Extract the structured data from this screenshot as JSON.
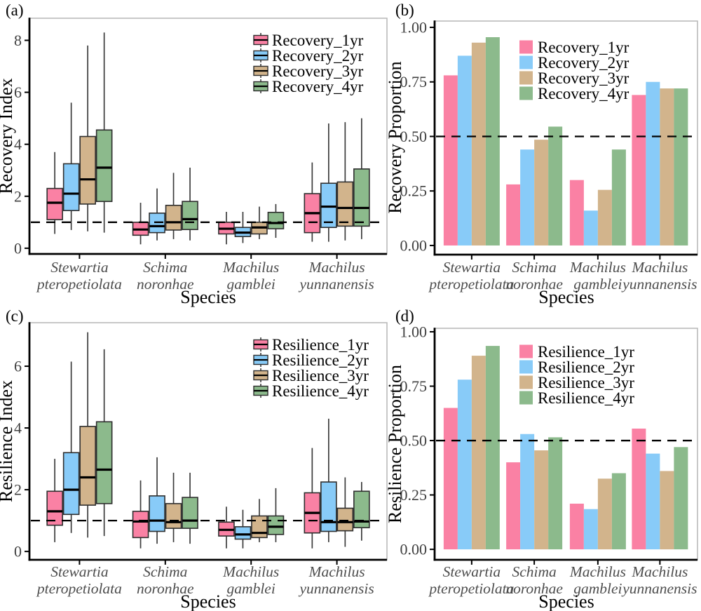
{
  "figure": {
    "x_axis_title": "Species",
    "species": [
      [
        "Stewartia",
        "pteropetiolata"
      ],
      [
        "Schima",
        "noronhae"
      ],
      [
        "Machilus",
        "gamblei"
      ],
      [
        "Machilus",
        "yunnanensis"
      ]
    ],
    "colors": {
      "series_pink": "#FA81A4",
      "series_blue": "#88CBF8",
      "series_tan": "#D2B48C",
      "series_green": "#8CBA8C",
      "box_stroke": "#2e2e2e",
      "median_line": "#000000",
      "whisker": "#3c3c3c",
      "axis": "#000000",
      "panel_border": "#b5b5b5",
      "tick_label": "#404040",
      "species_label": "#4d4d4d",
      "reference_line": "#000000"
    }
  },
  "chart_data": [
    {
      "panel_label": "(a)",
      "type": "box",
      "title": "",
      "xlabel": "Species",
      "ylabel": "Recovery Index",
      "categories": [
        "Stewartia pteropetiolata",
        "Schima noronhae",
        "Machilus gamblei",
        "Machilus yunnanensis"
      ],
      "yticks": [
        0,
        2,
        4,
        6,
        8
      ],
      "ytick_labels": [
        "0",
        "2",
        "4",
        "6",
        "8"
      ],
      "ylim": [
        -0.22,
        8.85
      ],
      "ref_line": 1.0,
      "grid": false,
      "legend_position": "top-right-inside",
      "legend_style": "boxplot-key",
      "series": [
        {
          "name": "Recovery_1yr",
          "color_key": "series_pink",
          "boxes": [
            [
              0.55,
              1.1,
              1.75,
              2.3,
              3.7
            ],
            [
              0.15,
              0.5,
              0.72,
              1.0,
              1.75
            ],
            [
              0.15,
              0.55,
              0.75,
              1.0,
              1.4
            ],
            [
              0.25,
              0.6,
              1.35,
              2.1,
              3.3
            ]
          ]
        },
        {
          "name": "Recovery_2yr",
          "color_key": "series_blue",
          "boxes": [
            [
              0.7,
              1.45,
              2.1,
              3.25,
              5.6
            ],
            [
              0.3,
              0.6,
              0.85,
              1.35,
              2.3
            ],
            [
              0.2,
              0.45,
              0.6,
              0.8,
              1.4
            ],
            [
              0.25,
              0.8,
              1.6,
              2.5,
              4.8
            ]
          ]
        },
        {
          "name": "Recovery_3yr",
          "color_key": "series_tan",
          "boxes": [
            [
              0.65,
              1.7,
              2.65,
              4.3,
              7.8
            ],
            [
              0.35,
              0.7,
              1.0,
              1.65,
              2.9
            ],
            [
              0.35,
              0.55,
              0.8,
              1.0,
              1.6
            ],
            [
              0.3,
              0.85,
              1.55,
              2.55,
              4.85
            ]
          ]
        },
        {
          "name": "Recovery_4yr",
          "color_key": "series_green",
          "boxes": [
            [
              0.6,
              1.8,
              3.1,
              4.55,
              8.3
            ],
            [
              0.3,
              0.72,
              1.12,
              1.8,
              3.1
            ],
            [
              0.4,
              0.75,
              0.97,
              1.38,
              1.7
            ],
            [
              0.35,
              0.85,
              1.55,
              3.05,
              5.0
            ]
          ]
        }
      ]
    },
    {
      "panel_label": "(b)",
      "type": "bar",
      "title": "",
      "xlabel": "Species",
      "ylabel": "Recovery Proportion",
      "categories": [
        "Stewartia pteropetiolata",
        "Schima noronhae",
        "Machilus gamblei",
        "Machilus yunnanensis"
      ],
      "yticks": [
        0,
        0.25,
        0.5,
        0.75,
        1.0
      ],
      "ytick_labels": [
        "0.00",
        "0.25",
        "0.50",
        "0.75",
        "1.00"
      ],
      "ylim": [
        -0.042,
        1.029
      ],
      "ref_line": 0.5,
      "grid": false,
      "legend_position": "top-center-inside",
      "legend_style": "square-key",
      "series": [
        {
          "name": "Recovery_1yr",
          "color_key": "series_pink",
          "values": [
            0.78,
            0.28,
            0.3,
            0.69
          ]
        },
        {
          "name": "Recovery_2yr",
          "color_key": "series_blue",
          "values": [
            0.87,
            0.44,
            0.16,
            0.75
          ]
        },
        {
          "name": "Recovery_3yr",
          "color_key": "series_tan",
          "values": [
            0.93,
            0.485,
            0.255,
            0.72
          ]
        },
        {
          "name": "Recovery_4yr",
          "color_key": "series_green",
          "values": [
            0.955,
            0.545,
            0.44,
            0.72
          ]
        }
      ]
    },
    {
      "panel_label": "(c)",
      "type": "box",
      "title": "",
      "xlabel": "Species",
      "ylabel": "Resilience Index",
      "categories": [
        "Stewartia pteropetiolata",
        "Schima noronhae",
        "Machilus gamblei",
        "Machilus yunnanensis"
      ],
      "yticks": [
        0,
        2,
        4,
        6
      ],
      "ytick_labels": [
        "0",
        "2",
        "4",
        "6"
      ],
      "ylim": [
        -0.27,
        7.41
      ],
      "ref_line": 1.0,
      "grid": false,
      "legend_position": "top-right-inside",
      "legend_style": "boxplot-key",
      "series": [
        {
          "name": "Resilience_1yr",
          "color_key": "series_pink",
          "boxes": [
            [
              0.3,
              0.85,
              1.3,
              1.95,
              3.0
            ],
            [
              0.1,
              0.45,
              0.97,
              1.3,
              2.3
            ],
            [
              0.1,
              0.5,
              0.7,
              0.95,
              1.45
            ],
            [
              0.1,
              0.6,
              1.25,
              1.9,
              3.35
            ]
          ]
        },
        {
          "name": "Resilience_2yr",
          "color_key": "series_blue",
          "boxes": [
            [
              0.6,
              1.2,
              2.0,
              3.2,
              6.15
            ],
            [
              0.25,
              0.65,
              1.0,
              1.8,
              3.05
            ],
            [
              0.1,
              0.4,
              0.55,
              0.8,
              1.35
            ],
            [
              0.3,
              0.65,
              0.95,
              2.25,
              4.3
            ]
          ]
        },
        {
          "name": "Resilience_3yr",
          "color_key": "series_tan",
          "boxes": [
            [
              0.45,
              1.5,
              2.4,
              4.05,
              7.1
            ],
            [
              0.3,
              0.75,
              0.95,
              1.55,
              2.55
            ],
            [
              0.3,
              0.45,
              0.6,
              1.15,
              1.7
            ],
            [
              0.15,
              0.67,
              0.95,
              1.4,
              2.4
            ]
          ]
        },
        {
          "name": "Resilience_4yr",
          "color_key": "series_green",
          "boxes": [
            [
              0.5,
              1.55,
              2.65,
              4.2,
              6.55
            ],
            [
              0.25,
              0.75,
              1.0,
              1.75,
              2.55
            ],
            [
              0.3,
              0.55,
              0.8,
              1.15,
              2.05
            ],
            [
              0.35,
              0.77,
              0.97,
              1.95,
              2.25
            ]
          ]
        }
      ]
    },
    {
      "panel_label": "(d)",
      "type": "bar",
      "title": "",
      "xlabel": "Species",
      "ylabel": "Resilience Proportion",
      "categories": [
        "Stewartia pteropetiolata",
        "Schima noronhae",
        "Machilus gamblei",
        "Machilus yunnanensis"
      ],
      "yticks": [
        0,
        0.25,
        0.5,
        0.75,
        1.0
      ],
      "ytick_labels": [
        "0.00",
        "0.25",
        "0.50",
        "0.75",
        "1.00"
      ],
      "ylim": [
        -0.048,
        1.016
      ],
      "ref_line": 0.5,
      "grid": false,
      "legend_position": "top-center-inside",
      "legend_style": "square-key",
      "series": [
        {
          "name": "Resilience_1yr",
          "color_key": "series_pink",
          "values": [
            0.65,
            0.4,
            0.21,
            0.555
          ]
        },
        {
          "name": "Resilience_2yr",
          "color_key": "series_blue",
          "values": [
            0.78,
            0.53,
            0.185,
            0.44
          ]
        },
        {
          "name": "Resilience_3yr",
          "color_key": "series_tan",
          "values": [
            0.89,
            0.455,
            0.325,
            0.36
          ]
        },
        {
          "name": "Resilience_4yr",
          "color_key": "series_green",
          "values": [
            0.935,
            0.515,
            0.35,
            0.47
          ]
        }
      ]
    }
  ]
}
